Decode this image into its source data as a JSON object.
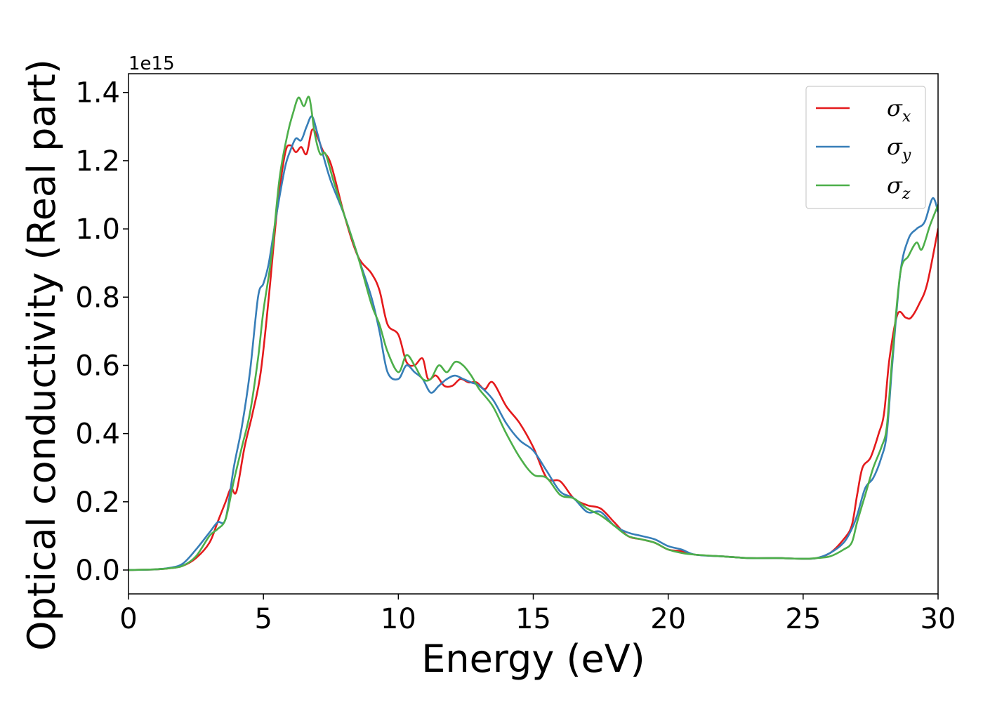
{
  "chart_data": {
    "type": "line",
    "xlabel": "Energy (eV)",
    "ylabel": "Optical conductivity (Real part)",
    "y_offset_label": "1e15",
    "y_scale": 1000000000000000.0,
    "xlim": [
      0,
      30
    ],
    "ylim": [
      -0.07,
      1.455
    ],
    "x_ticks": [
      0,
      5,
      10,
      15,
      20,
      25,
      30
    ],
    "x_tick_labels": [
      "0",
      "5",
      "10",
      "15",
      "20",
      "25",
      "30"
    ],
    "y_ticks": [
      0.0,
      0.2,
      0.4,
      0.6,
      0.8,
      1.0,
      1.2,
      1.4
    ],
    "y_tick_labels": [
      "0.0",
      "0.2",
      "0.4",
      "0.6",
      "0.8",
      "1.0",
      "1.2",
      "1.4"
    ],
    "grid": false,
    "legend_position": "top-right",
    "series": [
      {
        "name": "σx",
        "symbol": "σ",
        "subscript": "x",
        "color": "#e41a1c",
        "x": [
          0,
          1,
          1.5,
          2,
          2.5,
          3,
          3.3,
          3.6,
          3.8,
          4.0,
          4.3,
          4.6,
          4.9,
          5.2,
          5.5,
          5.8,
          6.0,
          6.2,
          6.4,
          6.6,
          6.8,
          7.0,
          7.2,
          7.5,
          8.0,
          8.5,
          9.0,
          9.3,
          9.6,
          10.0,
          10.3,
          10.6,
          10.9,
          11.1,
          11.4,
          11.7,
          12.0,
          12.3,
          12.6,
          12.9,
          13.2,
          13.5,
          14.0,
          14.5,
          15.0,
          15.5,
          16.0,
          16.5,
          17.0,
          17.5,
          18.0,
          18.5,
          19.0,
          19.5,
          20.0,
          20.5,
          21.0,
          22.0,
          23.0,
          24.0,
          25.0,
          25.5,
          26.0,
          26.5,
          26.8,
          27.0,
          27.2,
          27.5,
          27.8,
          28.0,
          28.2,
          28.5,
          28.8,
          29.0,
          29.3,
          29.6,
          30.0
        ],
        "y": [
          0,
          0.002,
          0.005,
          0.012,
          0.035,
          0.08,
          0.14,
          0.2,
          0.24,
          0.23,
          0.36,
          0.46,
          0.58,
          0.8,
          1.05,
          1.22,
          1.245,
          1.225,
          1.24,
          1.22,
          1.29,
          1.27,
          1.23,
          1.19,
          1.04,
          0.92,
          0.87,
          0.82,
          0.72,
          0.69,
          0.61,
          0.6,
          0.62,
          0.56,
          0.57,
          0.54,
          0.54,
          0.56,
          0.55,
          0.55,
          0.53,
          0.55,
          0.48,
          0.43,
          0.36,
          0.27,
          0.26,
          0.21,
          0.19,
          0.18,
          0.14,
          0.1,
          0.09,
          0.08,
          0.06,
          0.055,
          0.045,
          0.04,
          0.035,
          0.035,
          0.033,
          0.035,
          0.05,
          0.09,
          0.13,
          0.22,
          0.3,
          0.33,
          0.4,
          0.46,
          0.62,
          0.75,
          0.74,
          0.74,
          0.78,
          0.84,
          1.0
        ]
      },
      {
        "name": "σy",
        "symbol": "σ",
        "subscript": "y",
        "color": "#377eb8",
        "x": [
          0,
          1,
          1.5,
          2,
          2.5,
          3,
          3.3,
          3.6,
          3.9,
          4.2,
          4.5,
          4.8,
          5.0,
          5.2,
          5.5,
          5.8,
          6.0,
          6.2,
          6.4,
          6.6,
          6.8,
          7.0,
          7.2,
          7.5,
          8.0,
          8.5,
          9.0,
          9.3,
          9.6,
          10.0,
          10.3,
          10.6,
          10.9,
          11.2,
          11.5,
          11.8,
          12.1,
          12.4,
          12.7,
          13.0,
          13.5,
          14.0,
          14.5,
          15.0,
          15.5,
          16.0,
          16.5,
          17.0,
          17.5,
          18.0,
          18.5,
          19.0,
          19.5,
          20.0,
          20.5,
          21.0,
          22.0,
          23.0,
          24.0,
          25.0,
          25.5,
          26.0,
          26.5,
          26.8,
          27.0,
          27.3,
          27.6,
          27.9,
          28.1,
          28.3,
          28.6,
          28.9,
          29.2,
          29.5,
          29.8,
          30.0
        ],
        "y": [
          0,
          0.002,
          0.006,
          0.018,
          0.06,
          0.11,
          0.14,
          0.15,
          0.3,
          0.42,
          0.58,
          0.8,
          0.84,
          0.9,
          1.05,
          1.18,
          1.23,
          1.265,
          1.26,
          1.3,
          1.33,
          1.28,
          1.22,
          1.14,
          1.04,
          0.92,
          0.8,
          0.7,
          0.58,
          0.56,
          0.6,
          0.58,
          0.56,
          0.52,
          0.54,
          0.56,
          0.57,
          0.56,
          0.55,
          0.54,
          0.5,
          0.43,
          0.38,
          0.35,
          0.29,
          0.23,
          0.21,
          0.17,
          0.17,
          0.13,
          0.11,
          0.1,
          0.09,
          0.07,
          0.06,
          0.045,
          0.04,
          0.035,
          0.035,
          0.033,
          0.035,
          0.05,
          0.08,
          0.12,
          0.16,
          0.24,
          0.27,
          0.33,
          0.4,
          0.6,
          0.87,
          0.97,
          1.0,
          1.02,
          1.09,
          1.05
        ]
      },
      {
        "name": "σz",
        "symbol": "σ",
        "subscript": "z",
        "color": "#4daf4a",
        "x": [
          0,
          1,
          1.5,
          2,
          2.5,
          3,
          3.3,
          3.6,
          3.9,
          4.2,
          4.5,
          4.8,
          5.0,
          5.3,
          5.6,
          5.9,
          6.1,
          6.3,
          6.5,
          6.7,
          6.9,
          7.1,
          7.3,
          7.6,
          8.0,
          8.5,
          9.0,
          9.3,
          9.6,
          10.0,
          10.3,
          10.6,
          10.9,
          11.2,
          11.5,
          11.8,
          12.1,
          12.4,
          12.7,
          13.0,
          13.5,
          14.0,
          14.5,
          15.0,
          15.5,
          16.0,
          16.5,
          17.0,
          17.5,
          18.0,
          18.5,
          19.0,
          19.5,
          20.0,
          20.5,
          21.0,
          22.0,
          23.0,
          24.0,
          25.0,
          25.5,
          26.0,
          26.5,
          26.8,
          27.0,
          27.3,
          27.6,
          27.9,
          28.1,
          28.3,
          28.6,
          28.9,
          29.2,
          29.4,
          29.7,
          30.0
        ],
        "y": [
          0,
          0.002,
          0.005,
          0.012,
          0.04,
          0.1,
          0.12,
          0.15,
          0.26,
          0.36,
          0.46,
          0.62,
          0.76,
          0.92,
          1.15,
          1.28,
          1.34,
          1.385,
          1.36,
          1.385,
          1.28,
          1.22,
          1.22,
          1.14,
          1.04,
          0.92,
          0.78,
          0.72,
          0.64,
          0.58,
          0.63,
          0.6,
          0.56,
          0.56,
          0.6,
          0.58,
          0.61,
          0.6,
          0.57,
          0.53,
          0.48,
          0.4,
          0.33,
          0.28,
          0.27,
          0.22,
          0.21,
          0.18,
          0.16,
          0.13,
          0.1,
          0.09,
          0.08,
          0.06,
          0.05,
          0.045,
          0.04,
          0.035,
          0.035,
          0.033,
          0.035,
          0.04,
          0.06,
          0.08,
          0.14,
          0.22,
          0.3,
          0.36,
          0.42,
          0.62,
          0.87,
          0.92,
          0.96,
          0.94,
          1.01,
          1.07
        ]
      }
    ]
  }
}
